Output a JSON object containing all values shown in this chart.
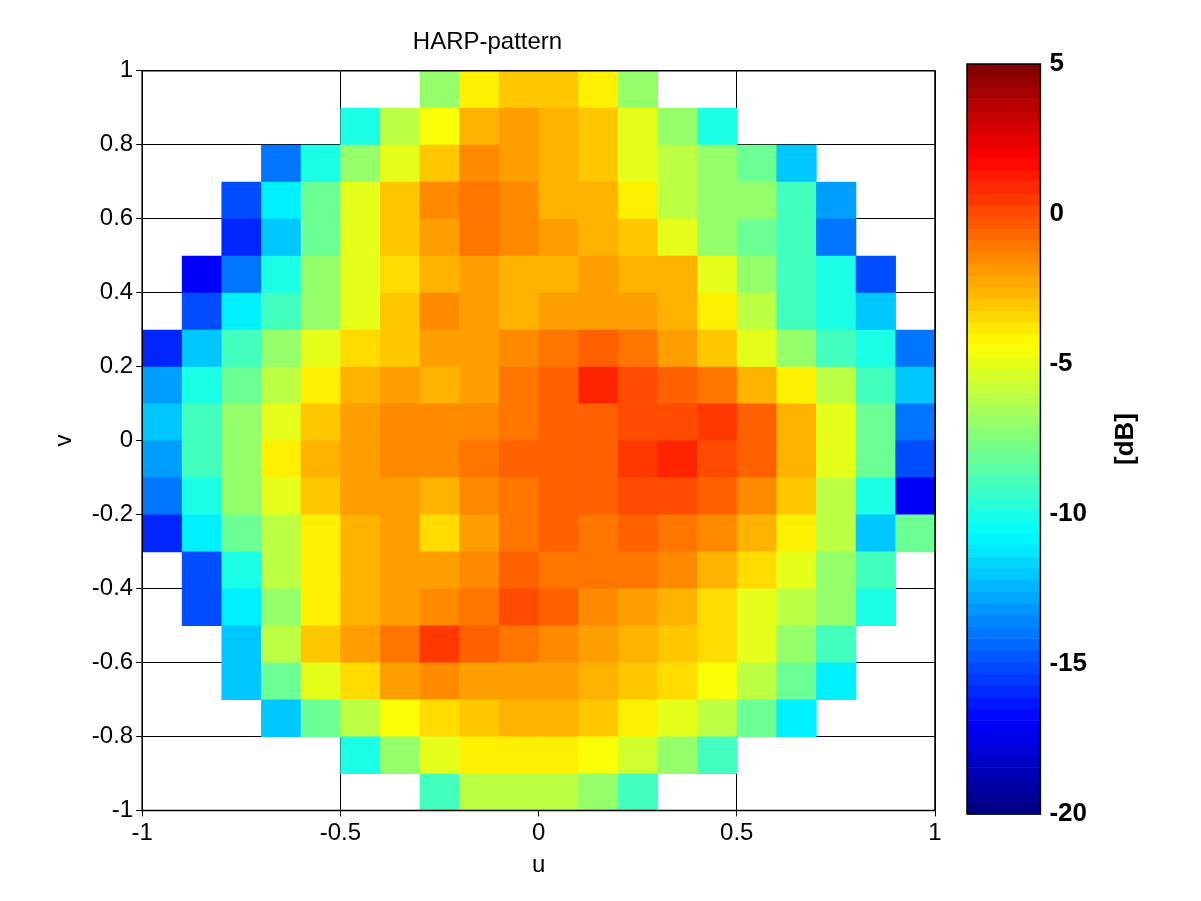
{
  "chart_data": {
    "type": "heatmap",
    "title": "HARP-pattern",
    "xlabel": "u",
    "ylabel": "v",
    "clabel": "[dB]",
    "xlim": [
      -1,
      1
    ],
    "ylim": [
      -1,
      1
    ],
    "xticks": [
      -1,
      -0.5,
      0,
      0.5,
      1
    ],
    "yticks": [
      -1,
      -0.8,
      -0.6,
      -0.4,
      -0.2,
      0,
      0.2,
      0.4,
      0.6,
      0.8,
      1
    ],
    "grid": true,
    "clim": [
      -20,
      5
    ],
    "cticks": [
      -20,
      -15,
      -10,
      -5,
      0,
      5
    ],
    "cells": [
      [
        null,
        null,
        null,
        null,
        null,
        null,
        null,
        -7,
        -4,
        -3,
        -3,
        -4,
        -7,
        null,
        null,
        null,
        null,
        null,
        null,
        null
      ],
      [
        null,
        null,
        null,
        null,
        null,
        -10,
        -6,
        -4.5,
        -2.5,
        -2,
        -2.5,
        -3,
        -5,
        -7,
        -10,
        null,
        null,
        null,
        null,
        null
      ],
      [
        null,
        null,
        null,
        -14,
        -10,
        -7,
        -5,
        -3,
        -1.5,
        -2,
        -2.5,
        -3,
        -5,
        -6,
        -7,
        -8,
        -12,
        null,
        null,
        null
      ],
      [
        null,
        null,
        -15,
        -11,
        -8,
        -5,
        -3,
        -1.5,
        -1,
        -1.5,
        -2.5,
        -2.5,
        -4,
        -6,
        -7,
        -7,
        -9,
        -13,
        null,
        null
      ],
      [
        null,
        null,
        -16,
        -12,
        -8,
        -5,
        -3,
        -2,
        -1,
        -1.5,
        -2,
        -2.5,
        -3,
        -5,
        -7,
        -8,
        -9,
        -14,
        null,
        null
      ],
      [
        null,
        -17,
        -14,
        -10,
        -7,
        -5,
        -3.5,
        -2.5,
        -2,
        -2.5,
        -2.5,
        -2,
        -2.5,
        -2.5,
        -5,
        -7,
        -9,
        -10,
        -15,
        null
      ],
      [
        null,
        -15,
        -11,
        -9,
        -7,
        -5,
        -3,
        -1.5,
        -2,
        -2.5,
        -2,
        -2,
        -2,
        -2.5,
        -4,
        -6,
        -9,
        -10,
        -12,
        null
      ],
      [
        -16,
        -12,
        -9,
        -7,
        -5,
        -3.5,
        -3,
        -2,
        -2,
        -1.5,
        -1,
        -0.5,
        -1,
        -2,
        -3,
        -5,
        -7,
        -9,
        -10,
        -14
      ],
      [
        -13,
        -10,
        -8,
        -6,
        -4,
        -2.5,
        -2,
        -2.5,
        -2,
        -1,
        -0.5,
        1,
        0,
        -0.5,
        -1,
        -2.5,
        -4,
        -6,
        -9,
        -12
      ],
      [
        -12,
        -9,
        -7,
        -5,
        -3,
        -2,
        -1.5,
        -1.5,
        -1.5,
        -1,
        -0.5,
        -0.5,
        0,
        0,
        0.5,
        -0.5,
        -2.5,
        -5,
        -8,
        -14
      ],
      [
        -13,
        -9,
        -7,
        -4,
        -2.5,
        -2,
        -1.5,
        -1.5,
        -1,
        -0.5,
        -0.5,
        -0.5,
        0.5,
        1,
        0,
        -0.5,
        -2.5,
        -5,
        -8,
        -15
      ],
      [
        -14,
        -10,
        -7,
        -5,
        -3,
        -2,
        -2,
        -2.5,
        -1.5,
        -1,
        -0.5,
        -0.5,
        0,
        0,
        -0.5,
        -1.5,
        -3,
        -6,
        -10,
        -17
      ],
      [
        -16,
        -11,
        -8,
        -6,
        -4,
        -2.5,
        -2,
        -3.5,
        -2,
        -1,
        -0.5,
        -1,
        -0.5,
        -1,
        -1.5,
        -2.5,
        -4,
        -6,
        -12,
        -8
      ],
      [
        null,
        -15,
        -10,
        -6,
        -4,
        -2.5,
        -2,
        -2,
        -1.5,
        -0.5,
        -1,
        -1,
        -1,
        -1.5,
        -2.5,
        -3.5,
        -5,
        -7,
        -9,
        null
      ],
      [
        null,
        -15,
        -11,
        -7,
        -4,
        -2.5,
        -2,
        -1.5,
        -1,
        0,
        -0.5,
        -1.5,
        -2,
        -2.5,
        -3.5,
        -5,
        -6,
        -7,
        -10,
        null
      ],
      [
        null,
        null,
        -12,
        -6,
        -3,
        -2,
        -1,
        0.5,
        -0.5,
        -1,
        -1.5,
        -2,
        -2.5,
        -3,
        -3.5,
        -5,
        -7,
        -9,
        null,
        null
      ],
      [
        null,
        null,
        -12,
        -8,
        -5,
        -3.5,
        -2,
        -1.5,
        -2,
        -2,
        -2,
        -2.5,
        -3,
        -3.5,
        -4.5,
        -6,
        -8,
        -11,
        null,
        null
      ],
      [
        null,
        null,
        null,
        -12,
        -8,
        -6,
        -4.5,
        -3.5,
        -3,
        -2.5,
        -2.5,
        -3,
        -4,
        -5,
        -6,
        -8,
        -11,
        null,
        null,
        null
      ],
      [
        null,
        null,
        null,
        null,
        null,
        -10,
        -7,
        -5,
        -4,
        -4,
        -4,
        -4.5,
        -5.5,
        -7,
        -9,
        null,
        null,
        null,
        null,
        null
      ],
      [
        null,
        null,
        null,
        null,
        null,
        null,
        null,
        -9,
        -6,
        -6,
        -6,
        -7,
        -9,
        null,
        null,
        null,
        null,
        null,
        null,
        null
      ]
    ]
  }
}
